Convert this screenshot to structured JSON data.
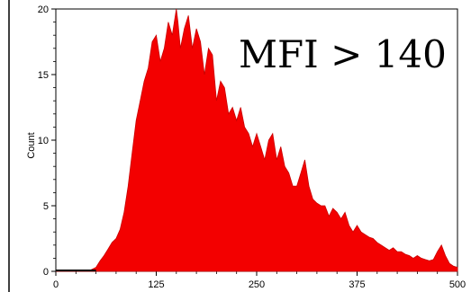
{
  "chart_data": {
    "type": "area",
    "title": "",
    "xlabel": "",
    "ylabel": "Count",
    "xlim": [
      0,
      500
    ],
    "ylim": [
      0,
      20
    ],
    "x_ticks": [
      "0",
      "125",
      "250",
      "375",
      "500"
    ],
    "y_ticks": [
      "0",
      "5",
      "10",
      "15",
      "20"
    ],
    "grid": false,
    "legend": "none",
    "annotation": "MFI > 140",
    "fill_color": "#ff0000",
    "line_color": "#cc0000",
    "series": [
      {
        "x": [
          0,
          40,
          50,
          55,
          60,
          65,
          70,
          75,
          80,
          85,
          90,
          95,
          100,
          105,
          110,
          115,
          120,
          125,
          130,
          135,
          140,
          145,
          150,
          152,
          155,
          160,
          165,
          170,
          175,
          180,
          185,
          190,
          195,
          200,
          205,
          210,
          215,
          220,
          225,
          230,
          235,
          240,
          245,
          250,
          255,
          260,
          265,
          270,
          275,
          280,
          285,
          290,
          295,
          300,
          305,
          310,
          315,
          320,
          325,
          330,
          335,
          340,
          345,
          350,
          355,
          360,
          365,
          370,
          375,
          380,
          385,
          390,
          395,
          400,
          405,
          410,
          415,
          420,
          425,
          430,
          435,
          440,
          445,
          450,
          455,
          460,
          465,
          470,
          475,
          480,
          485,
          490,
          495,
          500
        ],
        "y": [
          0,
          0,
          0.3,
          0.8,
          1.2,
          1.7,
          2.2,
          2.5,
          3.2,
          4.5,
          6.5,
          9.0,
          11.5,
          13.0,
          14.5,
          15.5,
          17.5,
          18.0,
          16.0,
          17.0,
          19.0,
          18.0,
          20.0,
          19.0,
          17.0,
          18.5,
          19.5,
          17.0,
          18.5,
          17.5,
          15.0,
          17.0,
          16.5,
          13.0,
          14.5,
          14.0,
          12.0,
          12.5,
          11.5,
          12.5,
          11.0,
          10.5,
          9.5,
          10.5,
          9.5,
          8.5,
          10.0,
          10.5,
          8.5,
          9.5,
          8.0,
          7.5,
          6.5,
          6.5,
          7.5,
          8.5,
          6.5,
          5.5,
          5.2,
          5.0,
          5.0,
          4.2,
          4.8,
          4.5,
          4.0,
          4.5,
          3.5,
          3.0,
          3.5,
          3.0,
          2.8,
          2.6,
          2.5,
          2.2,
          2.0,
          1.8,
          1.6,
          1.8,
          1.5,
          1.5,
          1.3,
          1.2,
          1.0,
          1.2,
          1.0,
          0.9,
          0.8,
          0.9,
          1.5,
          2.0,
          1.2,
          0.6,
          0.4,
          0.3
        ]
      }
    ]
  }
}
